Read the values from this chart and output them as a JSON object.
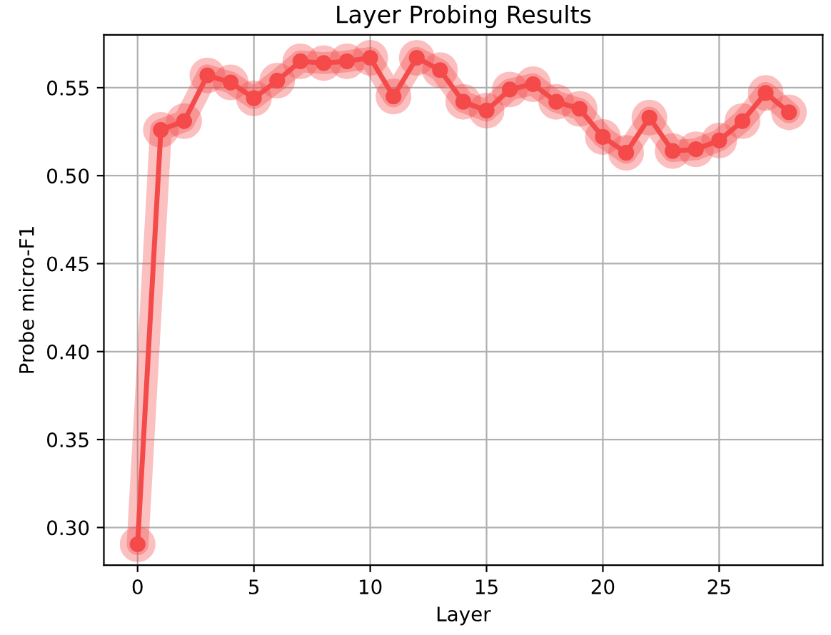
{
  "chart_data": {
    "type": "line",
    "title": "Layer Probing Results",
    "xlabel": "Layer",
    "ylabel": "Probe micro-F1",
    "x": [
      0,
      1,
      2,
      3,
      4,
      5,
      6,
      7,
      8,
      9,
      10,
      11,
      12,
      13,
      14,
      15,
      16,
      17,
      18,
      19,
      20,
      21,
      22,
      23,
      24,
      25,
      26,
      27,
      28
    ],
    "series": [
      {
        "color": "#f44a4a",
        "values": [
          0.2905,
          0.526,
          0.531,
          0.557,
          0.553,
          0.544,
          0.554,
          0.565,
          0.564,
          0.565,
          0.567,
          0.545,
          0.567,
          0.56,
          0.542,
          0.537,
          0.549,
          0.552,
          0.542,
          0.538,
          0.522,
          0.513,
          0.533,
          0.514,
          0.515,
          0.52,
          0.531,
          0.547,
          0.536
        ]
      }
    ],
    "xlim": [
      -1.45,
      29.45
    ],
    "ylim": [
      0.2786,
      0.58
    ],
    "xticks": [
      0,
      5,
      10,
      15,
      20,
      25
    ],
    "yticks": [
      {
        "value": 0.3,
        "label": "0.30"
      },
      {
        "value": 0.35,
        "label": "0.35"
      },
      {
        "value": 0.4,
        "label": "0.40"
      },
      {
        "value": 0.45,
        "label": "0.45"
      },
      {
        "value": 0.5,
        "label": "0.50"
      },
      {
        "value": 0.55,
        "label": "0.55"
      }
    ],
    "grid": true,
    "marker": "circle",
    "line_style": "solid"
  }
}
